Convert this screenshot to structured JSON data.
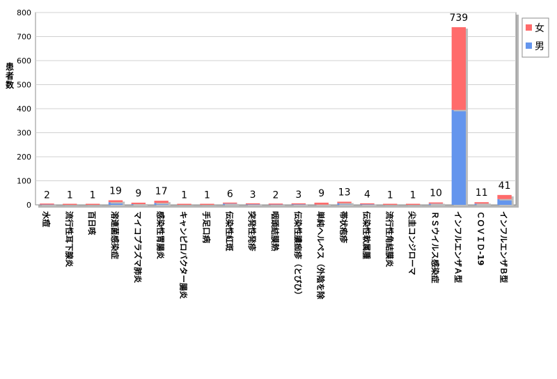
{
  "chart_data": {
    "type": "bar",
    "stacked": true,
    "ylabel": "患者数",
    "ylim": [
      0,
      800
    ],
    "yticks": [
      0,
      100,
      200,
      300,
      400,
      500,
      600,
      700,
      800
    ],
    "grid": true,
    "legend_position": "top-right",
    "categories": [
      "水痘",
      "流行性耳下腺炎",
      "百日咳",
      "溶連菌感染症",
      "マイコプラズマ肺炎",
      "感染性胃腸炎",
      "キャンピロバクター腸炎",
      "手足口病",
      "伝染性紅斑",
      "突発性発疹",
      "咽頭結膜熱",
      "伝染性膿痂疹（とびひ）",
      "単純ヘルペス（外陰を除",
      "帯状疱疹",
      "伝染性軟属腫",
      "流行性角結膜炎",
      "尖圭コンジローマ",
      "ＲＳウイルス感染症",
      "インフルエンザＡ型",
      "ＣＯＶＩＤ-19",
      "インフルエンザＢ型"
    ],
    "totals": [
      2,
      1,
      1,
      19,
      9,
      17,
      1,
      1,
      6,
      3,
      2,
      3,
      9,
      13,
      4,
      1,
      1,
      10,
      739,
      11,
      41
    ],
    "series": [
      {
        "name": "男",
        "color": "#6495ed",
        "values": [
          1,
          0,
          0,
          11,
          3,
          8,
          0,
          0,
          5,
          2,
          1,
          2,
          1,
          7,
          2,
          0,
          0,
          5,
          395,
          5,
          24
        ]
      },
      {
        "name": "女",
        "color": "#ff6b6b",
        "values": [
          1,
          1,
          1,
          8,
          6,
          9,
          1,
          1,
          1,
          1,
          1,
          1,
          8,
          6,
          2,
          1,
          1,
          5,
          344,
          6,
          17
        ]
      }
    ]
  }
}
